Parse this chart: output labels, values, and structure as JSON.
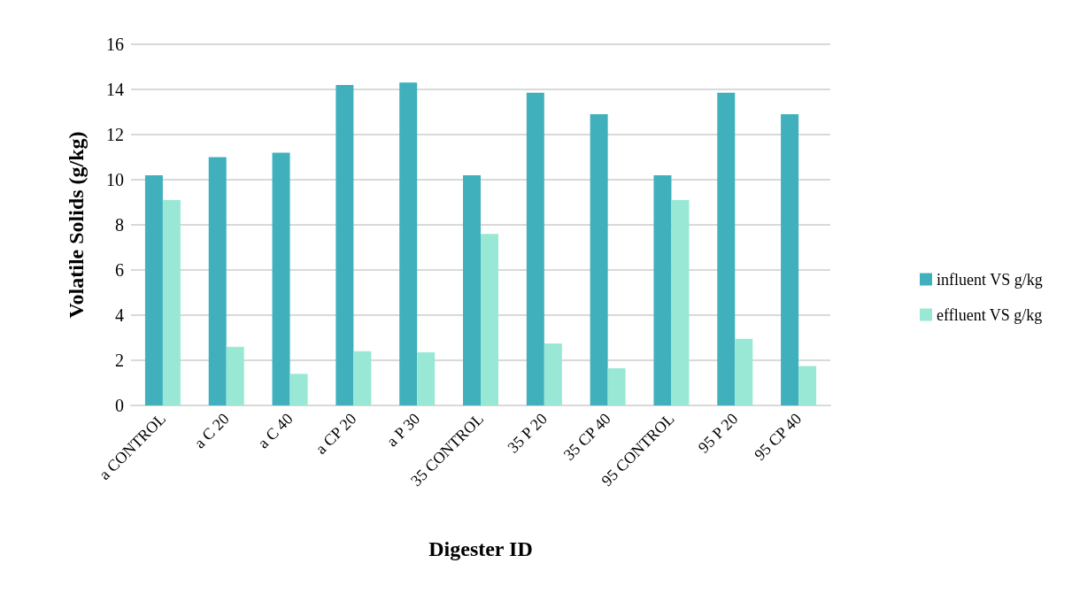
{
  "chart_data": {
    "type": "bar",
    "xlabel": "Digester ID",
    "ylabel": "Volatile Solids (g/kg)",
    "categories": [
      "a CONTROL",
      "a C 20",
      "a C 40",
      "a CP 20",
      "a P 30",
      "35 CONTROL",
      "35 P 20",
      "35 CP 40",
      "95 CONTROL",
      "95 P 20",
      "95 CP 40"
    ],
    "series": [
      {
        "name": "influent VS g/kg",
        "color": "#40b0bd",
        "values": [
          10.2,
          11.0,
          11.2,
          14.2,
          14.3,
          10.2,
          13.85,
          12.9,
          10.2,
          13.85,
          12.9
        ]
      },
      {
        "name": "effluent VS g/kg",
        "color": "#99e8d5",
        "values": [
          9.1,
          2.6,
          1.4,
          2.4,
          2.35,
          7.6,
          2.75,
          1.65,
          9.1,
          2.95,
          1.75
        ]
      }
    ],
    "ylim": [
      0,
      16
    ],
    "yticks": [
      0,
      2,
      4,
      6,
      8,
      10,
      12,
      14,
      16
    ],
    "grid": "y",
    "legend": "right"
  }
}
